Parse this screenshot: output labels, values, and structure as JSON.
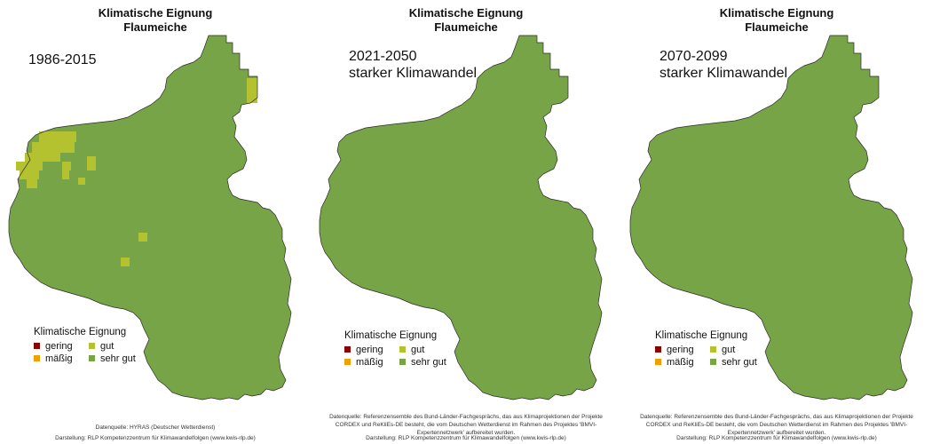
{
  "colors": {
    "gering": "#8b0000",
    "maessig": "#f0a000",
    "gut": "#b5c230",
    "sehr_gut": "#77a446",
    "outline": "#2b2b2b"
  },
  "panels": [
    {
      "title_line1": "Klimatische Eignung",
      "title_line2": "Flaumeiche",
      "period_line1": "1986-2015",
      "period_line2": "",
      "source_line": "Datenquelle: HYRAS (Deutscher Wetterdienst)",
      "credit_line": "Darstellung: RLP Kompetenzzentrum für Klimawandelfolgen (www.kwis-rlp.de)"
    },
    {
      "title_line1": "Klimatische Eignung",
      "title_line2": "Flaumeiche",
      "period_line1": "2021-2050",
      "period_line2": "starker Klimawandel",
      "source_line": "Datenquelle: Referenzensemble des Bund-Länder-Fachgesprächs, das aus Klimaprojektionen der Projekte CORDEX und ReKliEs-DE besteht, die vom Deutschen Wetterdienst im Rahmen des Projektes 'BMVI-Expertennetzwerk' aufbereitet wurden.",
      "credit_line": "Darstellung: RLP Kompetenzzentrum für Klimawandelfolgen (www.kwis-rlp.de)"
    },
    {
      "title_line1": "Klimatische Eignung",
      "title_line2": "Flaumeiche",
      "period_line1": "2070-2099",
      "period_line2": "starker Klimawandel",
      "source_line": "Datenquelle: Referenzensemble des Bund-Länder-Fachgesprächs, das aus Klimaprojektionen der Projekte CORDEX und ReKliEs-DE besteht, die vom Deutschen Wetterdienst im Rahmen des Projektes 'BMVI-Expertennetzwerk' aufbereitet wurden.",
      "credit_line": "Darstellung: RLP Kompetenzzentrum für Klimawandelfolgen (www.kwis-rlp.de)"
    }
  ],
  "legend": {
    "title": "Klimatische Eignung",
    "items": [
      "gering",
      "gut",
      "mäßig",
      "sehr gut"
    ]
  }
}
